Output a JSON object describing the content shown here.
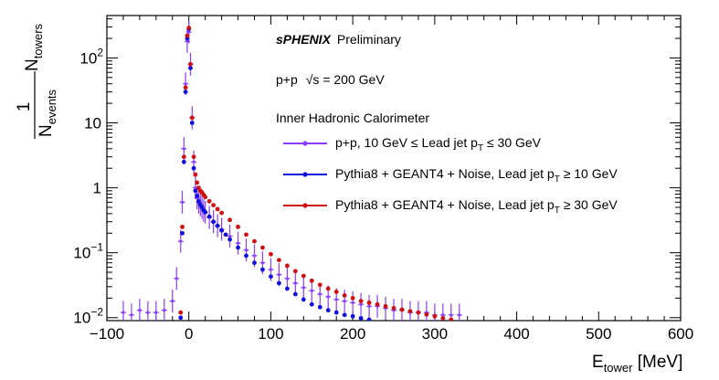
{
  "chart_data": {
    "type": "scatter",
    "xlabel_main": "E",
    "xlabel_sub": "tower",
    "xlabel_unit": " [MeV]",
    "ylabel_num": "1",
    "ylabel_den_main": "N",
    "ylabel_den_sub": "events",
    "ylabel_right_main": "N",
    "ylabel_right_sub": "towers",
    "xlim": [
      -100,
      600
    ],
    "ylim": [
      0.009,
      450
    ],
    "yscale": "log",
    "x_ticks": [
      -100,
      0,
      100,
      200,
      300,
      400,
      500,
      600
    ],
    "x_tick_labels": [
      "−100",
      "0",
      "100",
      "200",
      "300",
      "400",
      "500",
      "600"
    ],
    "y_ticks": [
      0.01,
      0.1,
      1,
      10,
      100
    ],
    "y_tick_labels_main": [
      "10",
      "10",
      "1",
      "10",
      "10"
    ],
    "y_tick_labels_exp": [
      "−2",
      "−1",
      "",
      "",
      "2"
    ],
    "grid": false,
    "legend_position": "top-right",
    "annotations": {
      "experiment": "sPHENIX",
      "status": "Preliminary",
      "system": "p+p",
      "sqrt_s": "√s = 200 GeV",
      "detector": "Inner Hadronic Calorimeter"
    },
    "series": [
      {
        "name_parts": [
          "p+p, 10 GeV ≤ Lead jet p",
          "T",
          " ≤ 30 GeV"
        ],
        "color": "#8a3ffc",
        "style": "points-with-errors",
        "x": [
          -80,
          -70,
          -60,
          -50,
          -40,
          -30,
          -20,
          -15,
          -10,
          -8,
          -6,
          -4,
          -2,
          0,
          2,
          4,
          6,
          8,
          10,
          12,
          14,
          16,
          18,
          20,
          25,
          30,
          35,
          40,
          50,
          60,
          70,
          80,
          90,
          100,
          110,
          120,
          130,
          140,
          150,
          160,
          170,
          180,
          190,
          200,
          210,
          220,
          230,
          240,
          250,
          260,
          270,
          280,
          290,
          300,
          310,
          320,
          330
        ],
        "y": [
          0.012,
          0.011,
          0.013,
          0.012,
          0.012,
          0.013,
          0.018,
          0.04,
          0.15,
          0.6,
          4.0,
          40,
          180,
          250,
          80,
          12,
          2.5,
          1.0,
          0.7,
          0.6,
          0.55,
          0.5,
          0.45,
          0.42,
          0.35,
          0.3,
          0.26,
          0.23,
          0.18,
          0.14,
          0.11,
          0.09,
          0.07,
          0.055,
          0.046,
          0.04,
          0.034,
          0.029,
          0.026,
          0.023,
          0.021,
          0.019,
          0.018,
          0.017,
          0.016,
          0.015,
          0.015,
          0.014,
          0.013,
          0.013,
          0.012,
          0.012,
          0.012,
          0.011,
          0.011,
          0.011,
          0.011
        ]
      },
      {
        "name_parts": [
          "Pythia8 + GEANT4 + Noise, Lead jet p",
          "T",
          " ≥ 10 GeV"
        ],
        "color": "#1010e0",
        "style": "markers",
        "x": [
          -10,
          -8,
          -6,
          -4,
          -2,
          0,
          2,
          4,
          6,
          8,
          10,
          12,
          14,
          16,
          18,
          20,
          25,
          30,
          35,
          40,
          45,
          50,
          60,
          70,
          80,
          90,
          100,
          110,
          120,
          130,
          140,
          150,
          160,
          170,
          180,
          190,
          200,
          210,
          220
        ],
        "y": [
          0.01,
          0.2,
          2.5,
          30,
          200,
          280,
          70,
          10,
          2.0,
          0.9,
          0.75,
          0.62,
          0.55,
          0.5,
          0.45,
          0.42,
          0.36,
          0.3,
          0.26,
          0.22,
          0.19,
          0.16,
          0.12,
          0.09,
          0.07,
          0.055,
          0.043,
          0.034,
          0.028,
          0.023,
          0.019,
          0.016,
          0.0145,
          0.013,
          0.012,
          0.011,
          0.0105,
          0.0098,
          0.0093
        ]
      },
      {
        "name_parts": [
          "Pythia8 + GEANT4 + Noise, Lead jet p",
          "T",
          " ≥ 30 GeV"
        ],
        "color": "#d01010",
        "style": "markers",
        "x": [
          -10,
          -8,
          -6,
          -4,
          -2,
          0,
          2,
          4,
          6,
          8,
          10,
          12,
          14,
          16,
          18,
          20,
          25,
          30,
          35,
          40,
          50,
          60,
          70,
          80,
          90,
          100,
          110,
          120,
          130,
          140,
          150,
          160,
          170,
          180,
          190,
          200,
          210,
          220,
          230,
          240,
          250,
          260,
          270,
          280,
          290,
          300,
          310,
          320
        ],
        "y": [
          0.012,
          0.25,
          3.0,
          35,
          220,
          290,
          80,
          12,
          3.0,
          1.6,
          1.2,
          1.0,
          0.9,
          0.85,
          0.78,
          0.72,
          0.62,
          0.54,
          0.47,
          0.41,
          0.32,
          0.25,
          0.19,
          0.15,
          0.12,
          0.095,
          0.077,
          0.063,
          0.052,
          0.044,
          0.037,
          0.032,
          0.028,
          0.025,
          0.022,
          0.02,
          0.018,
          0.017,
          0.016,
          0.015,
          0.014,
          0.0133,
          0.0125,
          0.012,
          0.0112,
          0.0105,
          0.0098,
          0.0093
        ]
      }
    ]
  }
}
